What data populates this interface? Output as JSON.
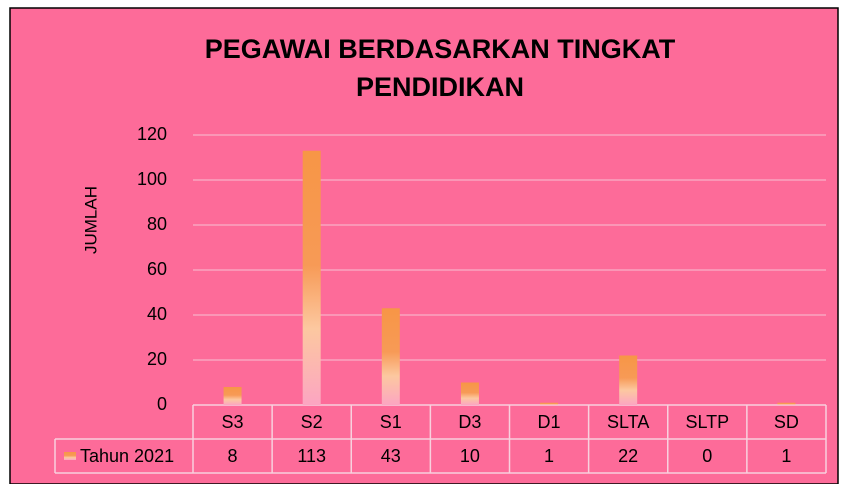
{
  "chart_data": {
    "type": "bar",
    "title": "PEGAWAI BERDASARKAN TINGKAT PENDIDIKAN",
    "ylabel": "JUMLAH",
    "categories": [
      "S3",
      "S2",
      "S1",
      "D3",
      "D1",
      "SLTA",
      "SLTP",
      "SD"
    ],
    "series": [
      {
        "name": "Tahun 2021",
        "color": "#f79646",
        "values": [
          8,
          113,
          43,
          10,
          1,
          22,
          0,
          1
        ]
      }
    ],
    "ylim": [
      0,
      120
    ],
    "yticks": [
      0,
      20,
      40,
      60,
      80,
      100,
      120
    ],
    "grid": true,
    "legend": "table"
  }
}
